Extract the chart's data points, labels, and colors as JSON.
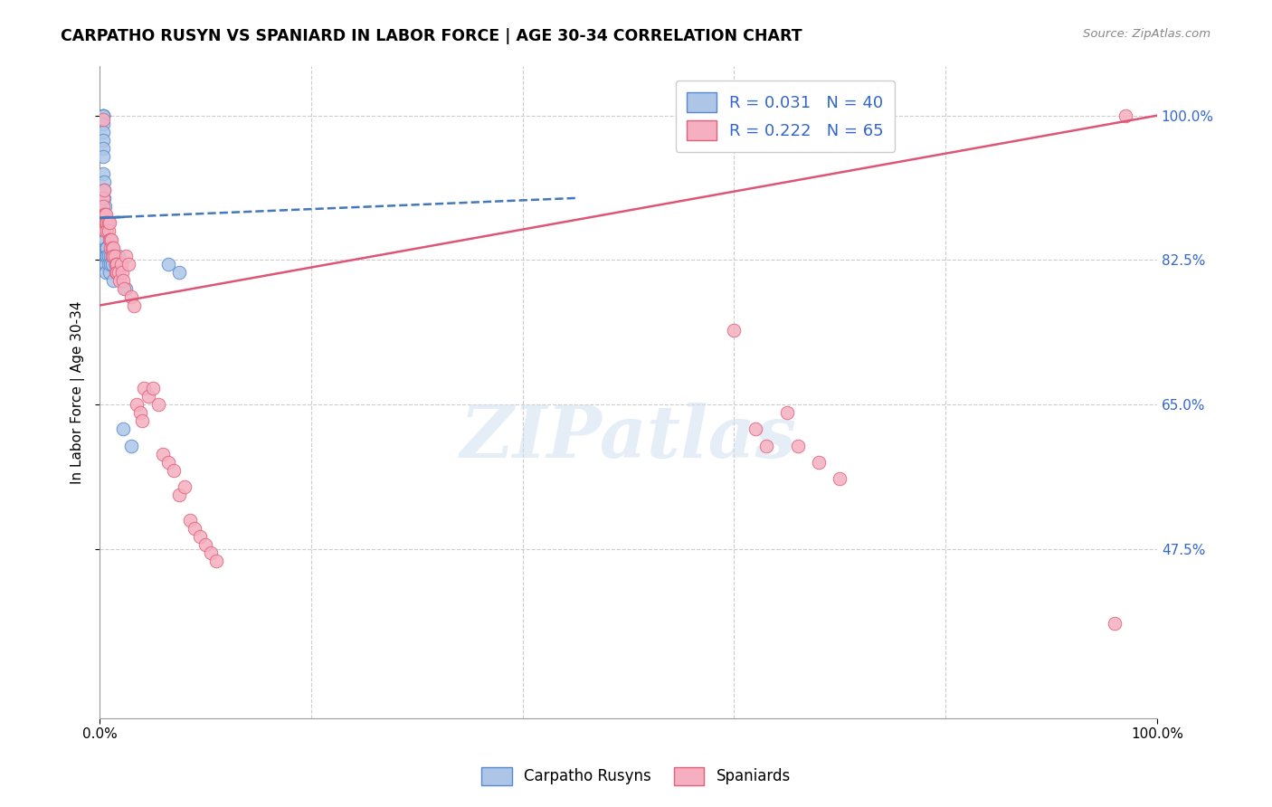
{
  "title": "CARPATHO RUSYN VS SPANIARD IN LABOR FORCE | AGE 30-34 CORRELATION CHART",
  "source": "Source: ZipAtlas.com",
  "ylabel": "In Labor Force | Age 30-34",
  "xlim": [
    0,
    1.0
  ],
  "ylim": [
    0.27,
    1.06
  ],
  "yticks": [
    0.475,
    0.65,
    0.825,
    1.0
  ],
  "ytick_labels": [
    "47.5%",
    "65.0%",
    "82.5%",
    "100.0%"
  ],
  "xtick_values": [
    0.0,
    1.0
  ],
  "xtick_labels": [
    "0.0%",
    "100.0%"
  ],
  "blue_r": 0.031,
  "blue_n": 40,
  "pink_r": 0.222,
  "pink_n": 65,
  "blue_color": "#adc6e8",
  "pink_color": "#f5afc0",
  "blue_edge_color": "#5588cc",
  "pink_edge_color": "#e0607a",
  "blue_line_color": "#4477bb",
  "pink_line_color": "#dd5577",
  "grid_color": "#cccccc",
  "legend_color": "#3366cc",
  "blue_points_x": [
    0.003,
    0.003,
    0.003,
    0.003,
    0.003,
    0.003,
    0.003,
    0.003,
    0.003,
    0.003,
    0.004,
    0.004,
    0.004,
    0.005,
    0.005,
    0.005,
    0.005,
    0.005,
    0.006,
    0.006,
    0.006,
    0.006,
    0.007,
    0.007,
    0.008,
    0.008,
    0.009,
    0.01,
    0.01,
    0.012,
    0.013,
    0.015,
    0.016,
    0.018,
    0.02,
    0.022,
    0.025,
    0.03,
    0.065,
    0.075
  ],
  "blue_points_y": [
    1.0,
    1.0,
    1.0,
    1.0,
    0.99,
    0.98,
    0.97,
    0.96,
    0.95,
    0.93,
    0.92,
    0.91,
    0.9,
    0.89,
    0.88,
    0.87,
    0.86,
    0.85,
    0.84,
    0.83,
    0.82,
    0.81,
    0.84,
    0.83,
    0.83,
    0.82,
    0.81,
    0.83,
    0.82,
    0.82,
    0.8,
    0.82,
    0.81,
    0.83,
    0.82,
    0.62,
    0.79,
    0.6,
    0.82,
    0.81
  ],
  "pink_points_x": [
    0.003,
    0.003,
    0.003,
    0.004,
    0.004,
    0.005,
    0.005,
    0.005,
    0.006,
    0.006,
    0.007,
    0.007,
    0.008,
    0.008,
    0.009,
    0.009,
    0.01,
    0.01,
    0.011,
    0.012,
    0.012,
    0.013,
    0.013,
    0.014,
    0.015,
    0.015,
    0.016,
    0.016,
    0.018,
    0.019,
    0.02,
    0.021,
    0.022,
    0.023,
    0.025,
    0.027,
    0.03,
    0.032,
    0.035,
    0.038,
    0.04,
    0.042,
    0.046,
    0.05,
    0.055,
    0.06,
    0.065,
    0.07,
    0.075,
    0.08,
    0.085,
    0.09,
    0.095,
    0.1,
    0.105,
    0.11,
    0.6,
    0.62,
    0.63,
    0.65,
    0.66,
    0.68,
    0.7,
    0.96,
    0.97
  ],
  "pink_points_y": [
    0.995,
    0.9,
    0.89,
    0.91,
    0.88,
    0.88,
    0.87,
    0.86,
    0.88,
    0.87,
    0.87,
    0.86,
    0.87,
    0.86,
    0.87,
    0.85,
    0.85,
    0.84,
    0.85,
    0.84,
    0.83,
    0.84,
    0.83,
    0.83,
    0.82,
    0.81,
    0.82,
    0.81,
    0.81,
    0.8,
    0.82,
    0.81,
    0.8,
    0.79,
    0.83,
    0.82,
    0.78,
    0.77,
    0.65,
    0.64,
    0.63,
    0.67,
    0.66,
    0.67,
    0.65,
    0.59,
    0.58,
    0.57,
    0.54,
    0.55,
    0.51,
    0.5,
    0.49,
    0.48,
    0.47,
    0.46,
    0.74,
    0.62,
    0.6,
    0.64,
    0.6,
    0.58,
    0.56,
    0.385,
    1.0
  ],
  "watermark_text": "ZIPatlas",
  "background_color": "#ffffff"
}
